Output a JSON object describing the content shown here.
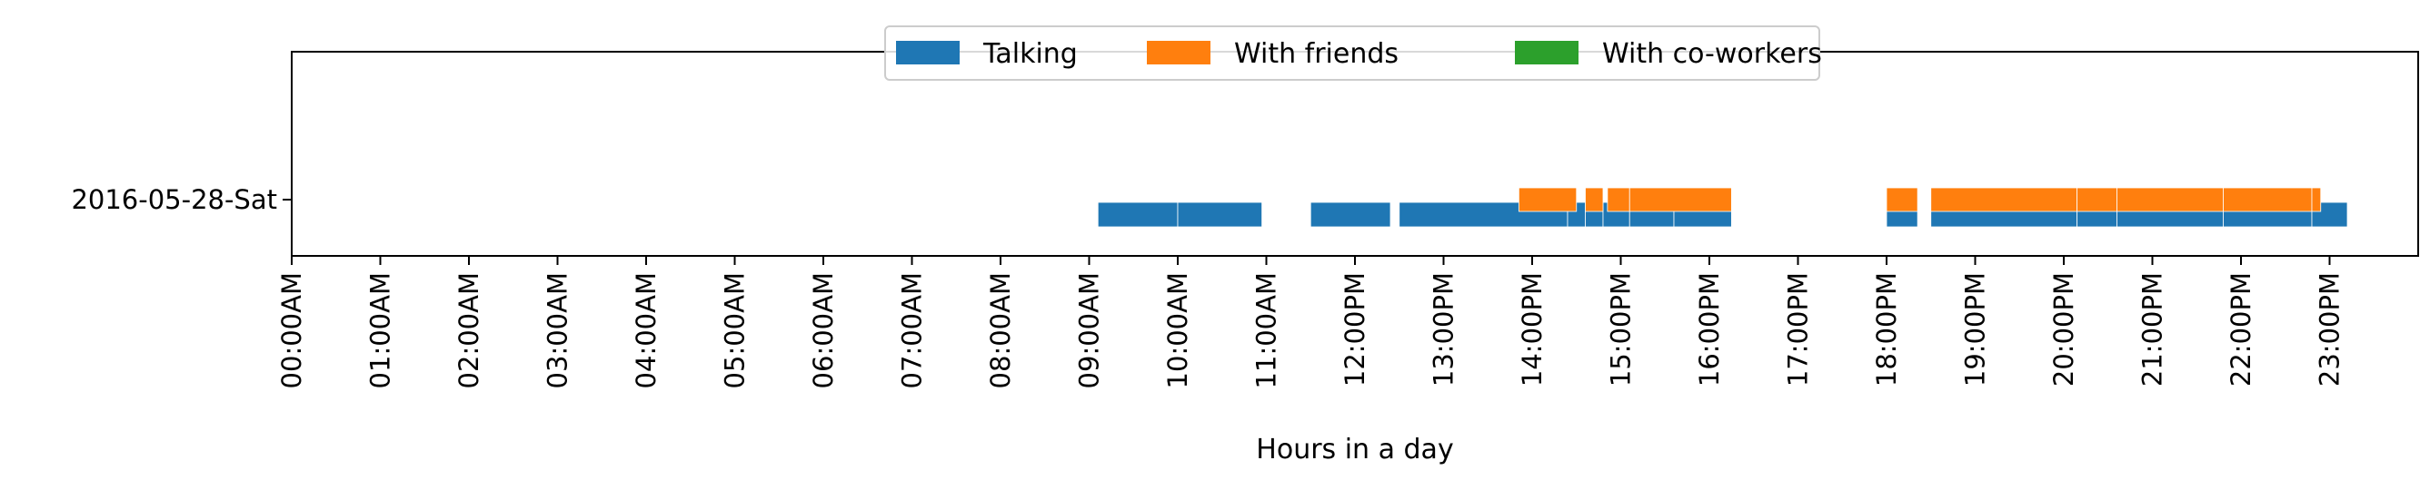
{
  "chart_data": {
    "type": "bar",
    "orientation": "horizontal-timeline",
    "title": "",
    "xlabel": "Hours in a day",
    "ylabel": "",
    "xlim": [
      0,
      24
    ],
    "grid": false,
    "legend_placement": "top-center",
    "categories": [
      "2016-05-28-Sat"
    ],
    "x_tick_values": [
      0,
      1,
      2,
      3,
      4,
      5,
      6,
      7,
      8,
      9,
      10,
      11,
      12,
      13,
      14,
      15,
      16,
      17,
      18,
      19,
      20,
      21,
      22,
      23
    ],
    "x_tick_labels": [
      "00:00AM",
      "01:00AM",
      "02:00AM",
      "03:00AM",
      "04:00AM",
      "05:00AM",
      "06:00AM",
      "07:00AM",
      "08:00AM",
      "09:00AM",
      "10:00AM",
      "11:00AM",
      "12:00PM",
      "13:00PM",
      "14:00PM",
      "15:00PM",
      "16:00PM",
      "17:00PM",
      "18:00PM",
      "19:00PM",
      "20:00PM",
      "21:00PM",
      "22:00PM",
      "23:00PM"
    ],
    "series": [
      {
        "name": "Talking",
        "color": "#1f77b4",
        "level": "lower",
        "intervals": [
          [
            9.1,
            10.0
          ],
          [
            10.0,
            10.95
          ],
          [
            11.5,
            12.4
          ],
          [
            12.5,
            14.4
          ],
          [
            14.4,
            14.6
          ],
          [
            14.6,
            14.8
          ],
          [
            14.8,
            15.1
          ],
          [
            15.1,
            15.6
          ],
          [
            15.6,
            16.25
          ],
          [
            18.0,
            18.35
          ],
          [
            18.5,
            20.15
          ],
          [
            20.15,
            20.6
          ],
          [
            20.6,
            21.8
          ],
          [
            21.8,
            22.8
          ],
          [
            22.8,
            23.2
          ]
        ]
      },
      {
        "name": "With friends",
        "color": "#ff7f0e",
        "level": "upper",
        "intervals": [
          [
            13.85,
            14.5
          ],
          [
            14.6,
            14.8
          ],
          [
            14.85,
            15.1
          ],
          [
            15.1,
            16.25
          ],
          [
            18.0,
            18.35
          ],
          [
            18.5,
            20.15
          ],
          [
            20.15,
            20.6
          ],
          [
            20.6,
            21.8
          ],
          [
            21.8,
            22.8
          ],
          [
            22.8,
            22.9
          ]
        ]
      },
      {
        "name": "With co-workers",
        "color": "#2ca02c",
        "level": "upper",
        "intervals": []
      }
    ]
  }
}
